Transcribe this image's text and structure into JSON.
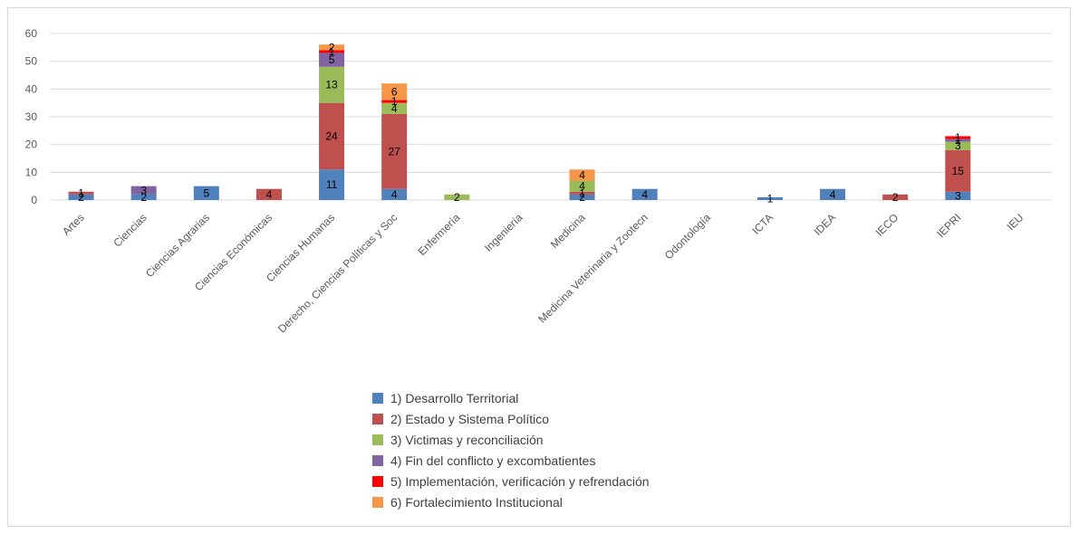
{
  "chart_data": {
    "type": "bar",
    "stacked": true,
    "title": "",
    "xlabel": "",
    "ylabel": "",
    "ylim": [
      0,
      60
    ],
    "yticks": [
      0,
      10,
      20,
      30,
      40,
      50,
      60
    ],
    "grid": true,
    "legend_position": "bottom",
    "categories": [
      "Artes",
      "Ciencias",
      "Ciencias Agrarias",
      "Ciencias Económicas",
      "Ciencias Humanas",
      "Derecho, Ciencias Políticas y Soc",
      "Enfermería",
      "Ingeniería",
      "Medicina",
      "Medicina Veterinaria y Zootecn",
      "Odontología",
      "ICTA",
      "IDEA",
      "IECO",
      "IEPRI",
      "IEU"
    ],
    "series": [
      {
        "name": "1) Desarrollo Territorial",
        "color": "#4f81bd",
        "values": [
          2,
          2,
          5,
          0,
          11,
          4,
          0,
          0,
          2,
          4,
          0,
          1,
          4,
          0,
          3,
          0
        ]
      },
      {
        "name": "2) Estado y Sistema Político",
        "color": "#c0504d",
        "values": [
          1,
          0,
          0,
          4,
          24,
          27,
          0,
          0,
          1,
          0,
          0,
          0,
          0,
          2,
          15,
          0
        ]
      },
      {
        "name": "3) Victimas y reconciliación",
        "color": "#9bbb59",
        "values": [
          0,
          0,
          0,
          0,
          13,
          4,
          2,
          0,
          4,
          0,
          0,
          0,
          0,
          0,
          3,
          0
        ]
      },
      {
        "name": "4) Fin del conflicto y excombatientes",
        "color": "#8064a2",
        "values": [
          0,
          3,
          0,
          0,
          5,
          0,
          0,
          0,
          0,
          0,
          0,
          0,
          0,
          0,
          1,
          0
        ]
      },
      {
        "name": "5) Implementación, verificación y refrendación",
        "color": "#ff0000",
        "values": [
          0,
          0,
          0,
          0,
          1,
          1,
          0,
          0,
          0,
          0,
          0,
          0,
          0,
          0,
          1,
          0
        ]
      },
      {
        "name": "6) Fortalecimiento Institucional",
        "color": "#f79646",
        "values": [
          0,
          0,
          0,
          0,
          2,
          6,
          0,
          0,
          4,
          0,
          0,
          0,
          0,
          0,
          0,
          0
        ]
      }
    ],
    "segment_labels": [
      [
        "2",
        "1",
        "",
        "",
        "",
        ""
      ],
      [
        "2",
        "",
        "",
        "3",
        "",
        ""
      ],
      [
        "5",
        "",
        "",
        "",
        "",
        ""
      ],
      [
        "",
        "4",
        "",
        "",
        "",
        ""
      ],
      [
        "11",
        "24",
        "13",
        "5",
        "1",
        "2"
      ],
      [
        "4",
        "27",
        "4",
        "",
        "1",
        "6"
      ],
      [
        "",
        "",
        "2",
        "",
        "",
        ""
      ],
      [
        "",
        "",
        "",
        "",
        "",
        ""
      ],
      [
        "2",
        "1",
        "4",
        "",
        "",
        "4"
      ],
      [
        "4",
        "",
        "",
        "",
        "",
        ""
      ],
      [
        "",
        "",
        "",
        "",
        "",
        ""
      ],
      [
        "1",
        "",
        "",
        "",
        "",
        ""
      ],
      [
        "4",
        "",
        "",
        "",
        "",
        ""
      ],
      [
        "",
        "2",
        "",
        "",
        "",
        ""
      ],
      [
        "3",
        "15",
        "3",
        "1",
        "1",
        ""
      ],
      [
        "",
        "",
        "",
        "",
        "",
        ""
      ]
    ]
  }
}
